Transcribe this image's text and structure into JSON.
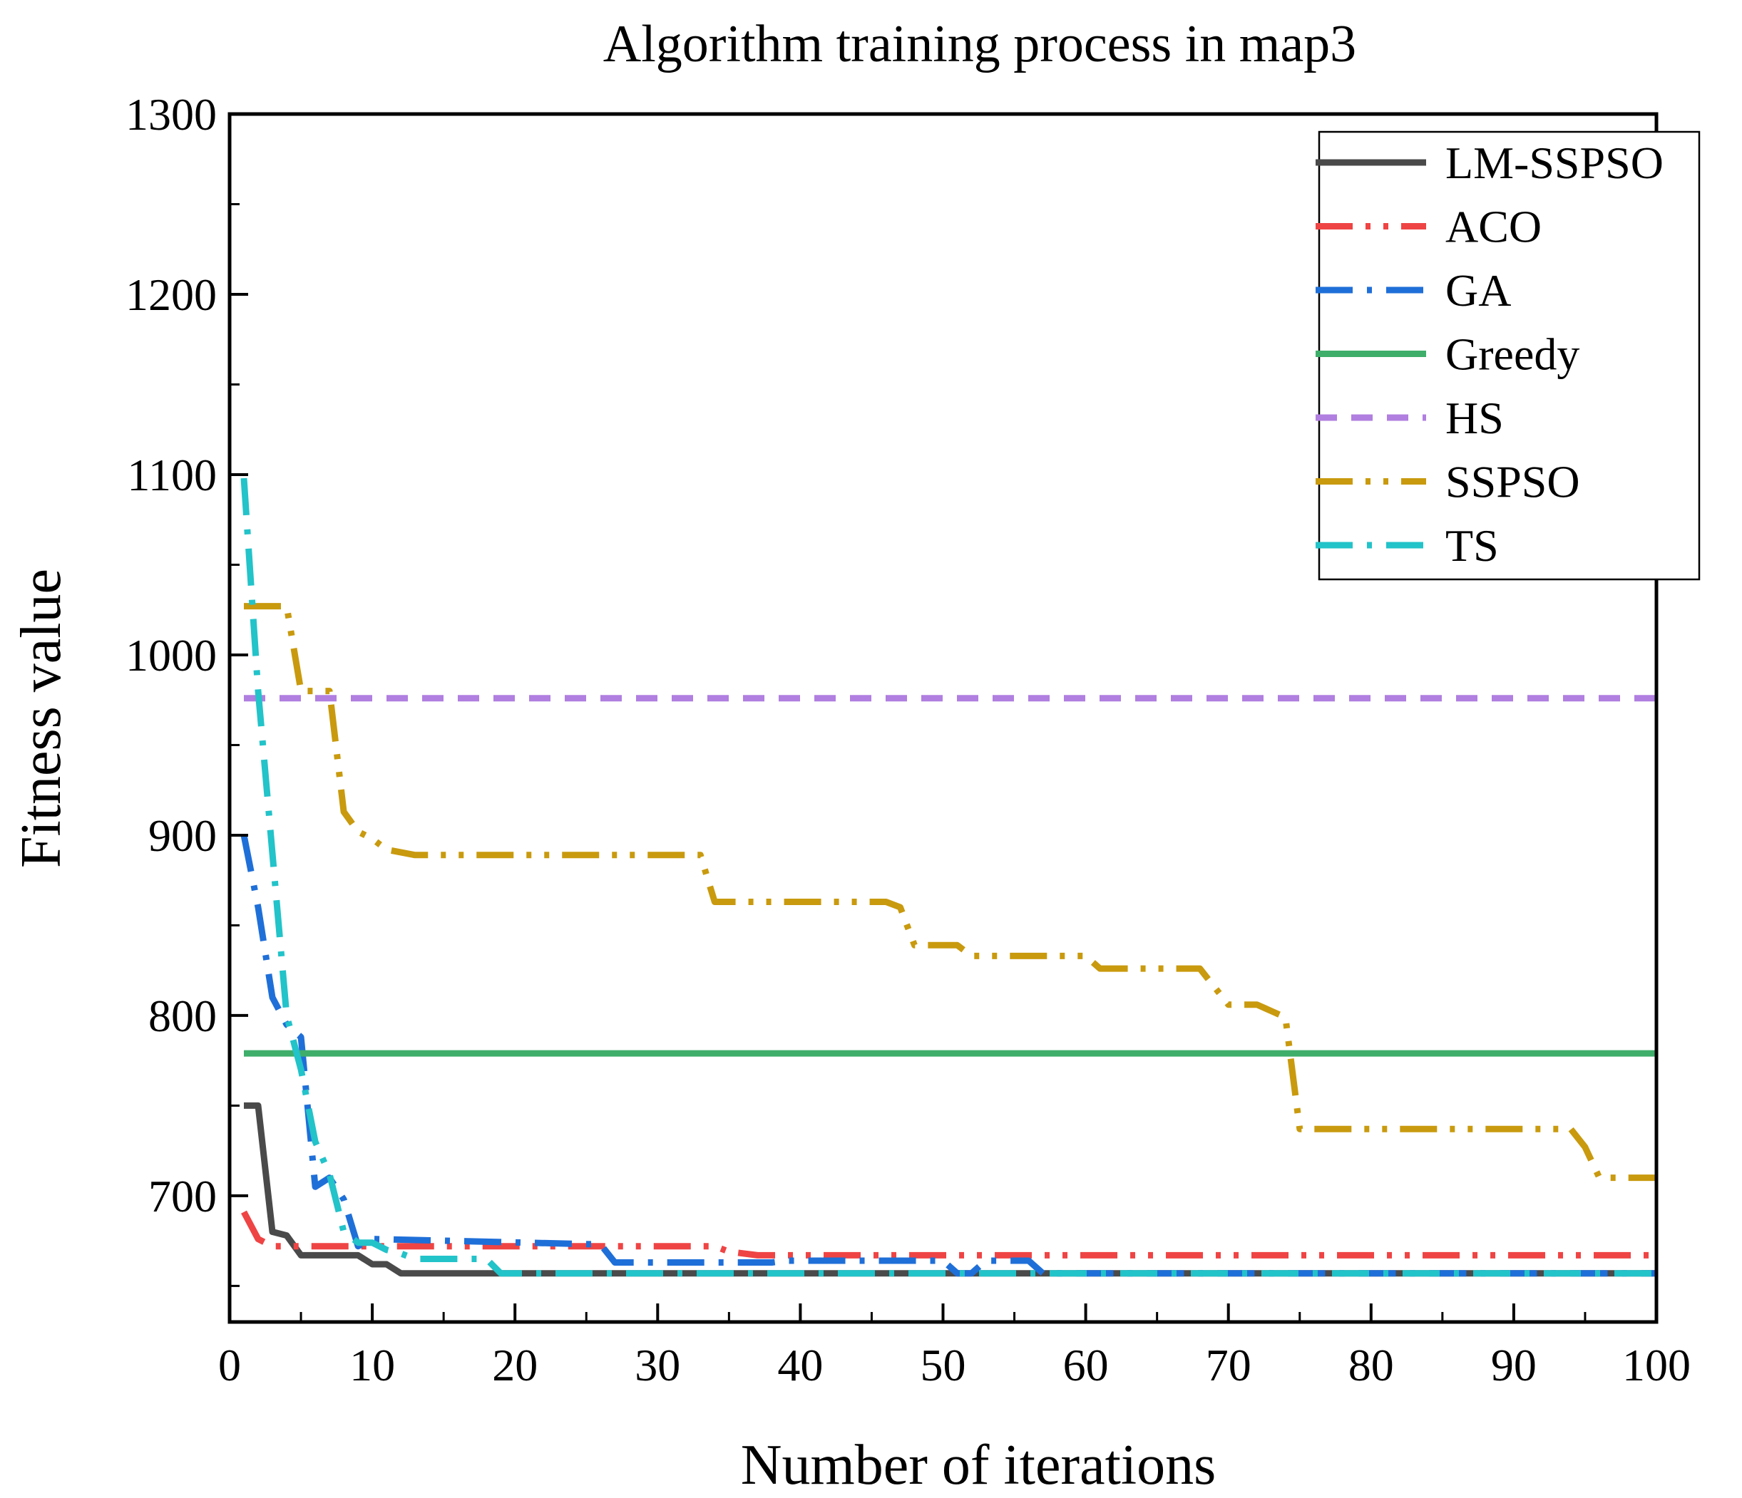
{
  "chart_data": {
    "type": "line",
    "title": "Algorithm training process in map3",
    "xlabel": "Number of iterations",
    "ylabel": "Fitness value",
    "xlim": [
      0,
      100
    ],
    "ylim": [
      630,
      1300
    ],
    "xticks": [
      0,
      10,
      20,
      30,
      40,
      50,
      60,
      70,
      80,
      90,
      100
    ],
    "yticks": [
      700,
      800,
      900,
      1000,
      1100,
      1200,
      1300
    ],
    "grid": false,
    "legend_position": "top-right",
    "series": [
      {
        "name": "LM-SSPSO",
        "color": "#4a4a4a",
        "dash": "solid",
        "x": [
          1,
          2,
          3,
          4,
          5,
          9,
          10,
          11,
          12,
          100
        ],
        "y": [
          750,
          750,
          680,
          678,
          667,
          667,
          662,
          662,
          657,
          657
        ]
      },
      {
        "name": "ACO",
        "color": "#ef4444",
        "dash": "dashdotdot",
        "x": [
          1,
          2,
          3,
          9,
          10,
          34,
          35,
          37,
          100
        ],
        "y": [
          691,
          676,
          672,
          672,
          672,
          672,
          669,
          667,
          667
        ]
      },
      {
        "name": "GA",
        "color": "#1f6fd8",
        "dash": "dashdot",
        "x": [
          1,
          2,
          3,
          4,
          5,
          6,
          7,
          8,
          9,
          10,
          26,
          27,
          38,
          39,
          50,
          51,
          52,
          53,
          56,
          57,
          100
        ],
        "y": [
          900,
          860,
          810,
          795,
          788,
          705,
          710,
          698,
          672,
          676,
          673,
          663,
          663,
          664,
          664,
          657,
          657,
          664,
          664,
          657,
          657
        ]
      },
      {
        "name": "Greedy",
        "color": "#3fae6a",
        "dash": "solid",
        "x": [
          1,
          100
        ],
        "y": [
          779,
          779
        ]
      },
      {
        "name": "HS",
        "color": "#b07fe0",
        "dash": "dash",
        "x": [
          1,
          100
        ],
        "y": [
          976,
          976
        ]
      },
      {
        "name": "SSPSO",
        "color": "#c99a0e",
        "dash": "dashdotdot",
        "x": [
          1,
          4,
          5,
          7,
          8,
          9,
          10,
          11,
          13,
          33,
          34,
          46,
          47,
          48,
          51,
          52,
          60,
          61,
          68,
          69,
          70,
          72,
          74,
          75,
          94,
          95,
          96,
          100
        ],
        "y": [
          1027,
          1027,
          980,
          980,
          913,
          902,
          898,
          892,
          889,
          889,
          863,
          863,
          860,
          839,
          839,
          833,
          833,
          826,
          826,
          816,
          806,
          806,
          799,
          737,
          737,
          727,
          710,
          710
        ]
      },
      {
        "name": "TS",
        "color": "#22c3c9",
        "dash": "dashdot",
        "x": [
          1,
          2,
          3,
          4,
          5,
          6,
          7,
          8,
          9,
          10,
          11,
          12,
          13,
          18,
          19,
          100
        ],
        "y": [
          1098,
          980,
          890,
          800,
          770,
          730,
          712,
          680,
          674,
          674,
          670,
          668,
          665,
          665,
          657,
          657
        ]
      }
    ]
  }
}
